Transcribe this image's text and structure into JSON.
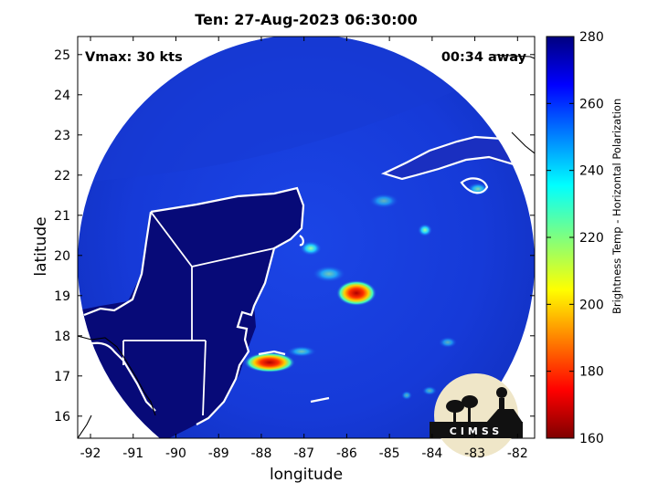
{
  "title": "Ten: 27-Aug-2023 06:30:00",
  "overlay": {
    "vmax": "Vmax: 30 kts",
    "away": "00:34 away"
  },
  "axes": {
    "xlabel": "longitude",
    "ylabel": "latitude",
    "x_ticks": [
      "-92",
      "-91",
      "-90",
      "-89",
      "-88",
      "-87",
      "-86",
      "-85",
      "-84",
      "-83",
      "-82"
    ],
    "y_ticks": [
      "25",
      "24",
      "23",
      "22",
      "21",
      "20",
      "19",
      "18",
      "17",
      "16"
    ],
    "xlim": [
      -92.3,
      -81.6
    ],
    "ylim": [
      15.45,
      25.45
    ]
  },
  "colorbar": {
    "label": "Brightness Temp - Horizontal Polarization",
    "ticks": [
      "280",
      "260",
      "240",
      "220",
      "200",
      "180",
      "160"
    ],
    "range": [
      160,
      280
    ],
    "colormap": "jet"
  },
  "logo": {
    "text": "CIMSS"
  },
  "colors": {
    "background_cold": "#0a0a78",
    "scene_mid": "#1a3fe0",
    "coast": "#ffffff"
  }
}
